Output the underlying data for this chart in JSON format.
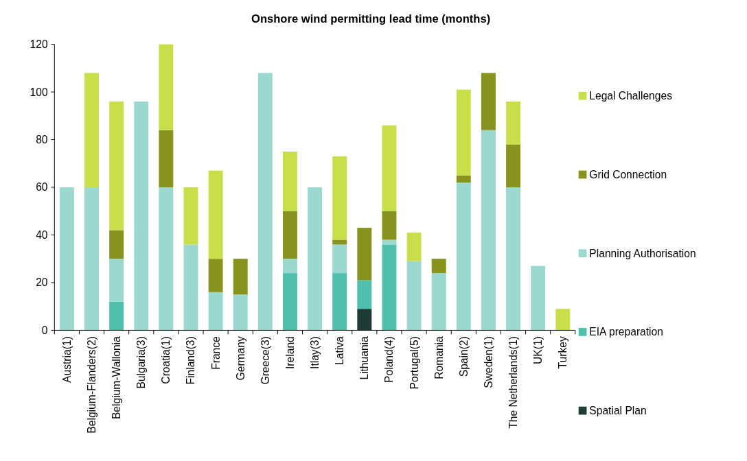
{
  "chart_data": {
    "type": "bar",
    "title": "Onshore wind permitting lead time (months)",
    "stacked": true,
    "legend": "right",
    "grid": false,
    "categories": [
      "Austria(1)",
      "Belgium-Flanders(2)",
      "Belgium-Wallonia",
      "Bulgaria(3)",
      "Croatia(1)",
      "Finland(3)",
      "France",
      "Germany",
      "Greece(3)",
      "Ireland",
      "Itlay(3)",
      "Lativa",
      "Lithuania",
      "Poland(4)",
      "Portugal(5)",
      "Romania",
      "Spain(2)",
      "Sweden(1)",
      "The Netherlands(1)",
      "UK(1)",
      "Turkey"
    ],
    "ylim": [
      0,
      120
    ],
    "yticks": [
      0,
      20,
      40,
      60,
      80,
      100,
      120
    ],
    "series": [
      {
        "name": "Spatial Plan",
        "color": "#1e3b35",
        "values": [
          null,
          null,
          null,
          null,
          null,
          null,
          null,
          null,
          null,
          null,
          null,
          null,
          9,
          null,
          null,
          null,
          null,
          null,
          null,
          null,
          null
        ]
      },
      {
        "name": "EIA preparation",
        "color": "#50bfae",
        "values": [
          null,
          null,
          12,
          null,
          null,
          null,
          null,
          null,
          null,
          24,
          null,
          24,
          12,
          36,
          null,
          null,
          null,
          null,
          null,
          null,
          null
        ]
      },
      {
        "name": "Planning Authorisation",
        "color": "#9ad8d0",
        "values": [
          60,
          60,
          18,
          96,
          60,
          36,
          16,
          15,
          108,
          6,
          60,
          12,
          null,
          2,
          29,
          24,
          62,
          84,
          60,
          27,
          null
        ]
      },
      {
        "name": "Grid Connection",
        "color": "#87931c",
        "values": [
          null,
          null,
          12,
          null,
          24,
          null,
          14,
          15,
          null,
          20,
          null,
          2,
          22,
          12,
          null,
          6,
          3,
          24,
          18,
          null,
          null
        ]
      },
      {
        "name": "Legal Challenges",
        "color": "#c8df4a",
        "values": [
          null,
          48,
          54,
          null,
          36,
          24,
          37,
          null,
          null,
          25,
          null,
          35,
          null,
          36,
          12,
          null,
          36,
          null,
          18,
          null,
          9
        ]
      }
    ]
  }
}
